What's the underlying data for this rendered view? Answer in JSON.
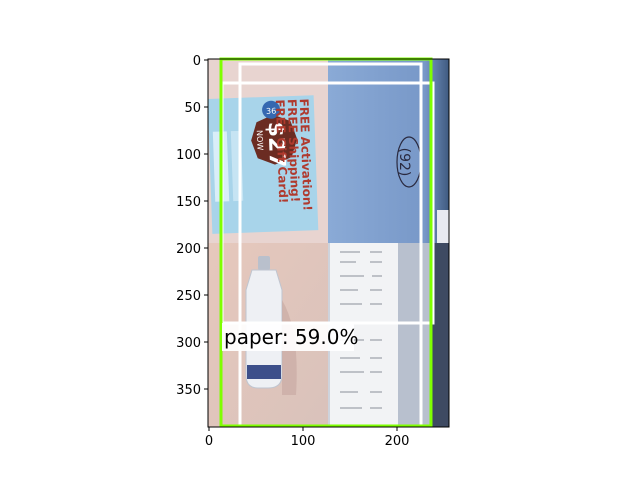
{
  "figure": {
    "x_ticks": [
      "0",
      "100",
      "200"
    ],
    "y_ticks": [
      "0",
      "50",
      "100",
      "150",
      "200",
      "250",
      "300",
      "350"
    ]
  },
  "photo": {
    "flyer": {
      "line1": "FREE Activation!",
      "line2": "FREE Shipping!",
      "line3": "FREE Gift Card!",
      "badge_now": "NOW",
      "badge_price": "$27",
      "badge_small": "36"
    },
    "note_text": "(92)"
  },
  "detections": [
    {
      "label": "paper: 59.0%",
      "color": "#7fff00"
    }
  ],
  "colors": {
    "box_green": "#7fff00",
    "box_white": "#ffffff",
    "flyer_blue": "#a8d4ea",
    "badge_brown": "#6b2c22",
    "wall_blue": "#7d9fcc"
  }
}
